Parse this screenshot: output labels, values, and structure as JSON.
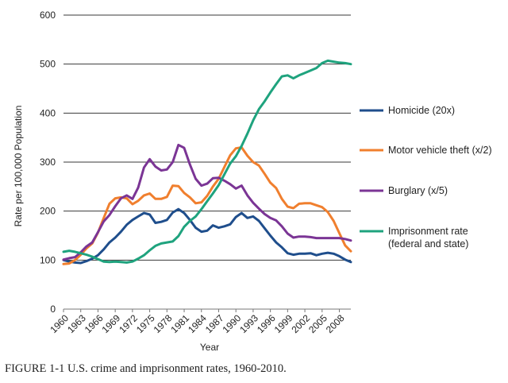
{
  "caption": "FIGURE 1-1 U.S. crime and imprisonment rates, 1960-2010.",
  "chart_data": {
    "type": "line",
    "title": "",
    "xlabel": "Year",
    "ylabel": "Rate per 100,000 Population",
    "xlim": [
      1960,
      2010
    ],
    "ylim": [
      0,
      600
    ],
    "y_ticks": [
      0,
      100,
      200,
      300,
      400,
      500,
      600
    ],
    "x_tick_labels": [
      "1960",
      "1963",
      "1966",
      "1969",
      "1972",
      "1975",
      "1978",
      "1981",
      "1984",
      "1987",
      "1990",
      "1993",
      "1996",
      "1999",
      "2002",
      "2005",
      "2008"
    ],
    "grid": "horizontal",
    "legend_position": "right",
    "x": [
      1960,
      1961,
      1962,
      1963,
      1964,
      1965,
      1966,
      1967,
      1968,
      1969,
      1970,
      1971,
      1972,
      1973,
      1974,
      1975,
      1976,
      1977,
      1978,
      1979,
      1980,
      1981,
      1982,
      1983,
      1984,
      1985,
      1986,
      1987,
      1988,
      1989,
      1990,
      1991,
      1992,
      1993,
      1994,
      1995,
      1996,
      1997,
      1998,
      1999,
      2000,
      2001,
      2002,
      2003,
      2004,
      2005,
      2006,
      2007,
      2008,
      2009,
      2010
    ],
    "series": [
      {
        "name": "Homicide (20x)",
        "color": "#1f4e8c",
        "values": [
          100,
          97,
          95,
          94,
          98,
          103,
          110,
          122,
          136,
          146,
          158,
          172,
          182,
          189,
          196,
          193,
          176,
          178,
          182,
          197,
          204,
          196,
          182,
          166,
          158,
          160,
          171,
          166,
          169,
          173,
          188,
          196,
          186,
          189,
          180,
          165,
          150,
          136,
          126,
          114,
          111,
          113,
          113,
          114,
          110,
          113,
          115,
          113,
          108,
          101,
          96
        ]
      },
      {
        "name": "Motor vehicle theft (x/2)",
        "color": "#f07f2e",
        "values": [
          92,
          93,
          100,
          111,
          124,
          134,
          156,
          186,
          215,
          226,
          228,
          226,
          214,
          221,
          232,
          236,
          225,
          225,
          229,
          252,
          251,
          237,
          228,
          216,
          218,
          231,
          250,
          266,
          290,
          314,
          328,
          330,
          313,
          300,
          293,
          276,
          258,
          247,
          225,
          209,
          206,
          215,
          216,
          216,
          212,
          208,
          198,
          180,
          155,
          130,
          118
        ]
      },
      {
        "name": "Burglary (x/5)",
        "color": "#7b3595",
        "values": [
          101,
          104,
          106,
          116,
          128,
          136,
          157,
          179,
          192,
          210,
          226,
          232,
          225,
          248,
          289,
          306,
          291,
          283,
          285,
          300,
          335,
          329,
          295,
          266,
          252,
          256,
          267,
          268,
          262,
          255,
          246,
          252,
          232,
          217,
          205,
          194,
          186,
          181,
          169,
          154,
          146,
          148,
          148,
          147,
          145,
          145,
          145,
          145,
          145,
          143,
          140
        ]
      },
      {
        "name": "Imprisonment rate",
        "name_line2": "(federal and state)",
        "color": "#1fa37e",
        "values": [
          117,
          119,
          117,
          114,
          111,
          107,
          102,
          97,
          96,
          97,
          96,
          95,
          97,
          103,
          110,
          120,
          129,
          134,
          136,
          138,
          149,
          168,
          180,
          189,
          204,
          220,
          236,
          253,
          275,
          297,
          312,
          333,
          358,
          385,
          408,
          424,
          442,
          459,
          475,
          477,
          471,
          477,
          482,
          487,
          492,
          502,
          507,
          505,
          503,
          502,
          500
        ]
      }
    ]
  }
}
